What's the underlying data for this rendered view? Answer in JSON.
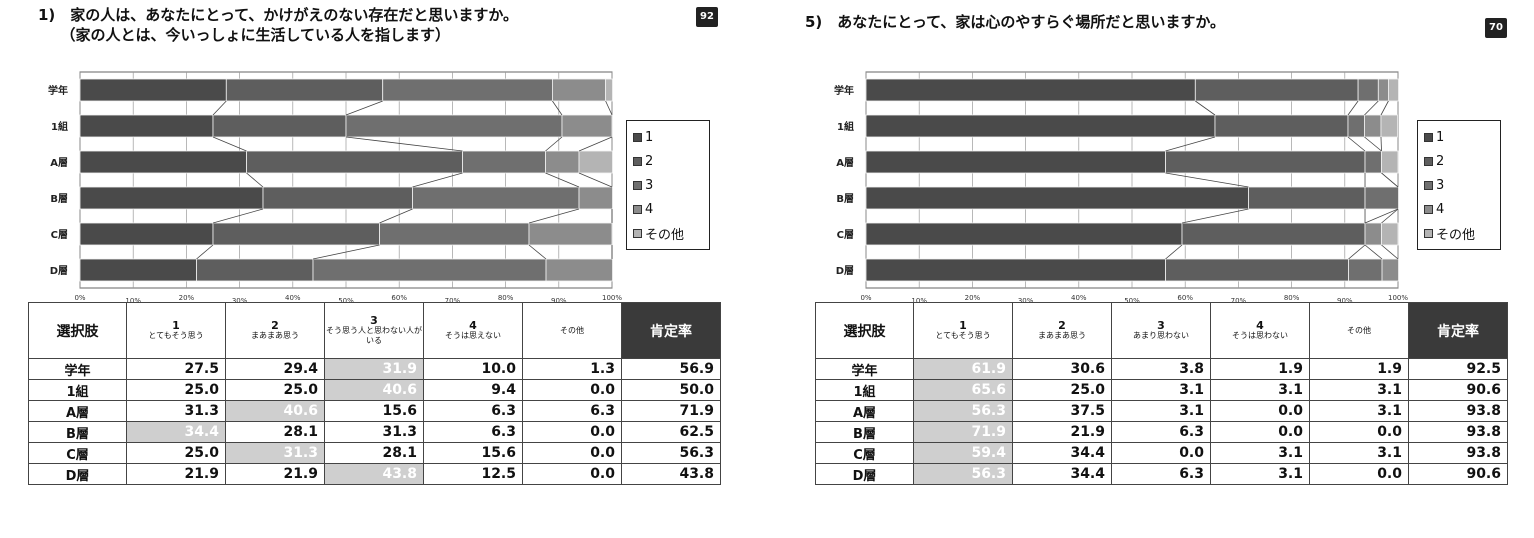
{
  "panels": [
    {
      "title": "1)　家の人は、あなたにとって、かけがえのない存在だと思いますか。\n　　（家の人とは、今いっしょに生活している人を指します）",
      "badge": "92",
      "header_choice": "選択肢",
      "header_rate": "肯定率",
      "options": [
        {
          "num": "1",
          "label": "とてもそう思う"
        },
        {
          "num": "2",
          "label": "まあまあ思う"
        },
        {
          "num": "3",
          "label": "そう思う人と思わない人がいる"
        },
        {
          "num": "4",
          "label": "そうは思えない"
        },
        {
          "num": "",
          "label": "その他"
        }
      ],
      "rows": [
        {
          "label": "学年",
          "values": [
            "27.5",
            "29.4",
            "31.9",
            "10.0",
            "1.3"
          ],
          "rate": "56.9",
          "highlight": 2
        },
        {
          "label": "1組",
          "values": [
            "25.0",
            "25.0",
            "40.6",
            "9.4",
            "0.0"
          ],
          "rate": "50.0",
          "highlight": 2
        },
        {
          "label": "A層",
          "values": [
            "31.3",
            "40.6",
            "15.6",
            "6.3",
            "6.3"
          ],
          "rate": "71.9",
          "highlight": 1
        },
        {
          "label": "B層",
          "values": [
            "34.4",
            "28.1",
            "31.3",
            "6.3",
            "0.0"
          ],
          "rate": "62.5",
          "highlight": 0
        },
        {
          "label": "C層",
          "values": [
            "25.0",
            "31.3",
            "28.1",
            "15.6",
            "0.0"
          ],
          "rate": "56.3",
          "highlight": 1
        },
        {
          "label": "D層",
          "values": [
            "21.9",
            "21.9",
            "43.8",
            "12.5",
            "0.0"
          ],
          "rate": "43.8",
          "highlight": 2
        }
      ],
      "chart_data": {
        "type": "bar",
        "orientation": "horizontal-stacked-100",
        "categories": [
          "学年",
          "1組",
          "A層",
          "B層",
          "C層",
          "D層"
        ],
        "series": [
          {
            "name": "1",
            "color": "#4a4a4a",
            "values": [
              27.5,
              25.0,
              31.3,
              34.4,
              25.0,
              21.9
            ]
          },
          {
            "name": "2",
            "color": "#5e5e5e",
            "values": [
              29.4,
              25.0,
              40.6,
              28.1,
              31.3,
              21.9
            ]
          },
          {
            "name": "3",
            "color": "#6f6f6f",
            "values": [
              31.9,
              40.6,
              15.6,
              31.3,
              28.1,
              43.8
            ]
          },
          {
            "name": "4",
            "color": "#8c8c8c",
            "values": [
              10.0,
              9.4,
              6.3,
              6.3,
              15.6,
              12.5
            ]
          },
          {
            "name": "その他",
            "color": "#b4b4b4",
            "values": [
              1.3,
              0.0,
              6.3,
              0.0,
              0.0,
              0.0
            ]
          }
        ],
        "xlim": [
          0,
          100
        ],
        "xticks": [
          "0%",
          "10%",
          "20%",
          "30%",
          "40%",
          "50%",
          "60%",
          "70%",
          "80%",
          "90%",
          "100%"
        ],
        "grid": true,
        "legend": "right"
      }
    },
    {
      "title": "5)　あなたにとって、家は心のやすらぐ場所だと思いますか。",
      "badge": "70",
      "header_choice": "選択肢",
      "header_rate": "肯定率",
      "options": [
        {
          "num": "1",
          "label": "とてもそう思う"
        },
        {
          "num": "2",
          "label": "まあまあ思う"
        },
        {
          "num": "3",
          "label": "あまり思わない"
        },
        {
          "num": "4",
          "label": "そうは思わない"
        },
        {
          "num": "",
          "label": "その他"
        }
      ],
      "rows": [
        {
          "label": "学年",
          "values": [
            "61.9",
            "30.6",
            "3.8",
            "1.9",
            "1.9"
          ],
          "rate": "92.5",
          "highlight": 0
        },
        {
          "label": "1組",
          "values": [
            "65.6",
            "25.0",
            "3.1",
            "3.1",
            "3.1"
          ],
          "rate": "90.6",
          "highlight": 0
        },
        {
          "label": "A層",
          "values": [
            "56.3",
            "37.5",
            "3.1",
            "0.0",
            "3.1"
          ],
          "rate": "93.8",
          "highlight": 0
        },
        {
          "label": "B層",
          "values": [
            "71.9",
            "21.9",
            "6.3",
            "0.0",
            "0.0"
          ],
          "rate": "93.8",
          "highlight": 0
        },
        {
          "label": "C層",
          "values": [
            "59.4",
            "34.4",
            "0.0",
            "3.1",
            "3.1"
          ],
          "rate": "93.8",
          "highlight": 0
        },
        {
          "label": "D層",
          "values": [
            "56.3",
            "34.4",
            "6.3",
            "3.1",
            "0.0"
          ],
          "rate": "90.6",
          "highlight": 0
        }
      ],
      "chart_data": {
        "type": "bar",
        "orientation": "horizontal-stacked-100",
        "categories": [
          "学年",
          "1組",
          "A層",
          "B層",
          "C層",
          "D層"
        ],
        "series": [
          {
            "name": "1",
            "color": "#4a4a4a",
            "values": [
              61.9,
              65.6,
              56.3,
              71.9,
              59.4,
              56.3
            ]
          },
          {
            "name": "2",
            "color": "#5e5e5e",
            "values": [
              30.6,
              25.0,
              37.5,
              21.9,
              34.4,
              34.4
            ]
          },
          {
            "name": "3",
            "color": "#6f6f6f",
            "values": [
              3.8,
              3.1,
              3.1,
              6.3,
              0.0,
              6.3
            ]
          },
          {
            "name": "4",
            "color": "#8c8c8c",
            "values": [
              1.9,
              3.1,
              0.0,
              0.0,
              3.1,
              3.1
            ]
          },
          {
            "name": "その他",
            "color": "#b4b4b4",
            "values": [
              1.9,
              3.1,
              3.1,
              0.0,
              3.1,
              0.0
            ]
          }
        ],
        "xlim": [
          0,
          100
        ],
        "xticks": [
          "0%",
          "10%",
          "20%",
          "30%",
          "40%",
          "50%",
          "60%",
          "70%",
          "80%",
          "90%",
          "100%"
        ],
        "grid": true,
        "legend": "right"
      }
    }
  ]
}
